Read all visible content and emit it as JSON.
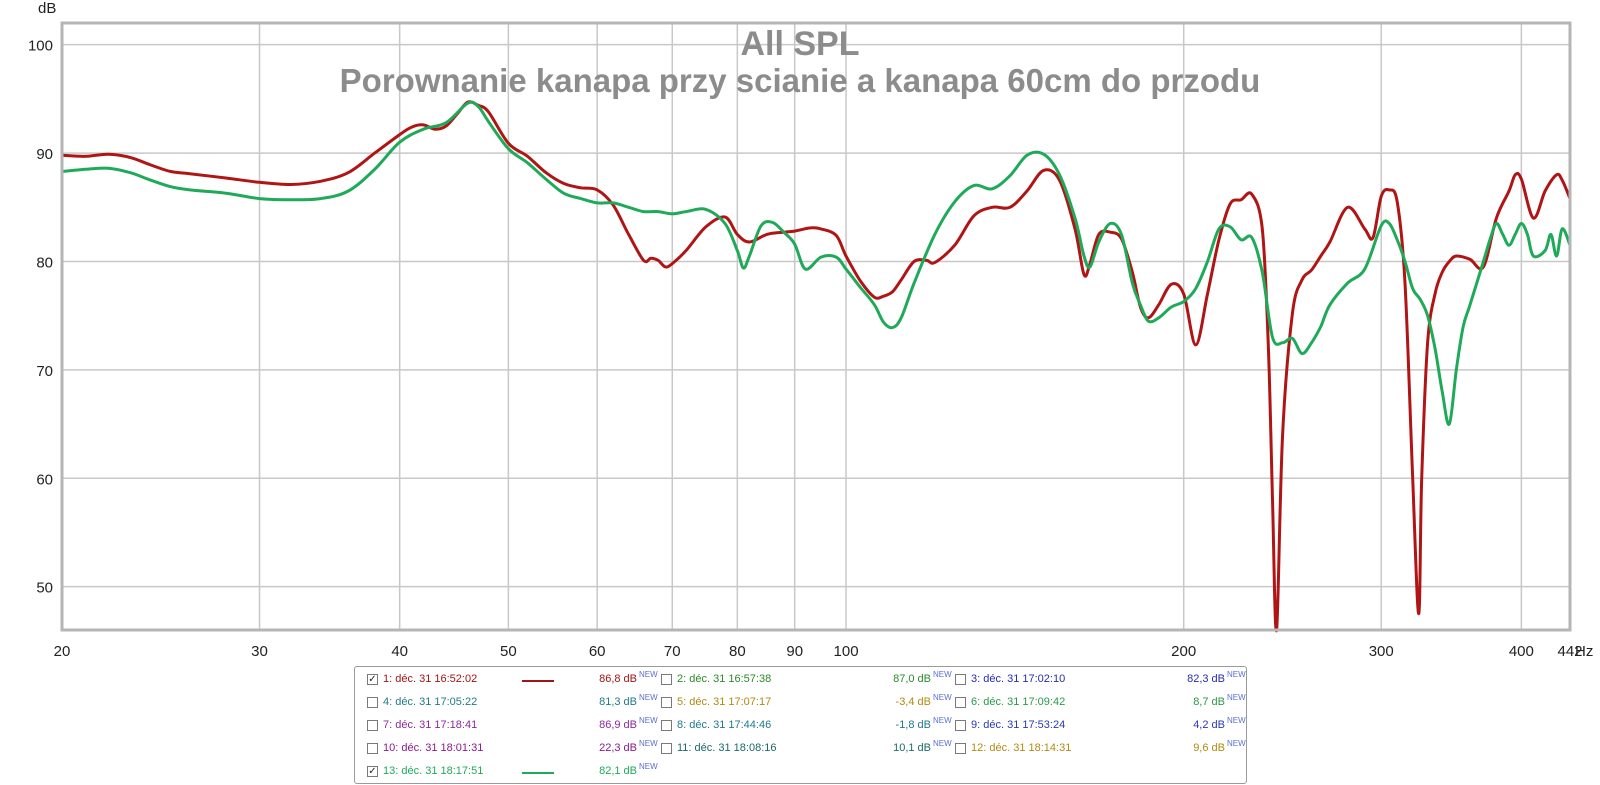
{
  "chart_data": {
    "type": "line",
    "title": "All SPL",
    "subtitle": "Porownanie kanapa przy scianie a kanapa 60cm do przodu",
    "ylabel": "dB",
    "xunit": "Hz",
    "xscale": "log",
    "xlim": [
      20,
      442
    ],
    "ylim": [
      46,
      102
    ],
    "grid": true,
    "xticks": [
      20,
      30,
      40,
      50,
      60,
      70,
      80,
      90,
      100,
      200,
      300,
      400,
      442
    ],
    "xtick_labels": [
      "20",
      "30",
      "40",
      "50",
      "60",
      "70",
      "80",
      "90",
      "100",
      "200",
      "300",
      "400",
      "442"
    ],
    "yticks": [
      50,
      60,
      70,
      80,
      90,
      100
    ],
    "ytick_labels": [
      "50",
      "60",
      "70",
      "80",
      "90",
      "100"
    ],
    "series": [
      {
        "name": "1: déc. 31 16:52:02",
        "color": "#b01515",
        "x": [
          20,
          21,
          22,
          23,
          24,
          25,
          26,
          28,
          30,
          32,
          34,
          36,
          38,
          40,
          41,
          42,
          43,
          44,
          45,
          46,
          47,
          48,
          50,
          52,
          54,
          56,
          58,
          60,
          62,
          64,
          66,
          67,
          68,
          69,
          70,
          72,
          75,
          78,
          80,
          82,
          85,
          88,
          90,
          93,
          95,
          98,
          100,
          103,
          106,
          108,
          110,
          112,
          115,
          118,
          120,
          125,
          130,
          135,
          140,
          145,
          150,
          155,
          160,
          163,
          165,
          168,
          172,
          176,
          180,
          183,
          186,
          190,
          195,
          200,
          205,
          210,
          215,
          220,
          225,
          230,
          235,
          238,
          240,
          242,
          245,
          250,
          255,
          260,
          265,
          270,
          280,
          290,
          295,
          300,
          305,
          310,
          315,
          320,
          324,
          326,
          330,
          335,
          340,
          345,
          350,
          360,
          370,
          380,
          390,
          395,
          400,
          410,
          420,
          430,
          435,
          442
        ],
        "values": [
          89.8,
          89.7,
          89.9,
          89.6,
          88.9,
          88.3,
          88.1,
          87.7,
          87.3,
          87.1,
          87.4,
          88.2,
          90.0,
          91.7,
          92.4,
          92.6,
          92.2,
          92.5,
          93.6,
          94.7,
          94.4,
          93.8,
          90.9,
          89.7,
          88.2,
          87.2,
          86.8,
          86.6,
          85.2,
          82.5,
          80.1,
          80.3,
          80.1,
          79.5,
          79.8,
          81.0,
          83.2,
          84.1,
          82.5,
          81.8,
          82.5,
          82.7,
          82.8,
          83.1,
          83.0,
          82.4,
          80.5,
          78.2,
          76.7,
          76.8,
          77.2,
          78.3,
          80.0,
          80.1,
          79.9,
          81.5,
          84.2,
          85.0,
          85.0,
          86.5,
          88.4,
          87.5,
          83.0,
          78.8,
          79.8,
          82.5,
          82.7,
          82.1,
          79.0,
          75.8,
          74.8,
          76.0,
          77.9,
          77.0,
          72.3,
          77.0,
          82.0,
          85.3,
          85.7,
          86.2,
          83.0,
          72.0,
          58.0,
          46.0,
          64.0,
          75.2,
          78.3,
          79.2,
          80.5,
          81.8,
          85.0,
          83.0,
          82.2,
          86.0,
          86.6,
          85.5,
          78.0,
          60.0,
          47.5,
          60.0,
          72.5,
          77.0,
          79.0,
          80.0,
          80.5,
          80.2,
          79.5,
          84.0,
          86.5,
          88.0,
          87.6,
          84.0,
          86.5,
          88.0,
          87.5,
          85.8
        ]
      },
      {
        "name": "13: déc. 31 18:17:51",
        "color": "#1faa5a",
        "x": [
          20,
          21,
          22,
          23,
          24,
          25,
          26,
          28,
          30,
          32,
          34,
          36,
          38,
          40,
          42,
          44,
          46,
          47,
          48,
          50,
          52,
          54,
          56,
          58,
          60,
          62,
          64,
          66,
          68,
          70,
          72,
          75,
          78,
          80,
          81,
          82,
          84,
          86,
          88,
          90,
          92,
          95,
          98,
          100,
          103,
          106,
          108,
          110,
          112,
          115,
          120,
          125,
          130,
          135,
          140,
          145,
          150,
          155,
          160,
          163,
          165,
          168,
          172,
          176,
          180,
          183,
          186,
          190,
          195,
          200,
          205,
          210,
          215,
          220,
          225,
          230,
          235,
          240,
          245,
          250,
          255,
          260,
          265,
          270,
          280,
          290,
          300,
          305,
          310,
          315,
          320,
          325,
          330,
          335,
          340,
          345,
          350,
          355,
          360,
          370,
          375,
          380,
          385,
          390,
          395,
          400,
          405,
          410,
          420,
          425,
          430,
          435,
          442
        ],
        "values": [
          88.3,
          88.5,
          88.6,
          88.2,
          87.5,
          86.9,
          86.6,
          86.3,
          85.8,
          85.7,
          85.8,
          86.5,
          88.5,
          91.0,
          92.2,
          92.8,
          94.6,
          94.3,
          92.9,
          90.4,
          89.1,
          87.6,
          86.3,
          85.8,
          85.4,
          85.4,
          85.0,
          84.6,
          84.6,
          84.4,
          84.6,
          84.8,
          83.5,
          81.0,
          79.4,
          80.5,
          83.3,
          83.6,
          82.7,
          81.6,
          79.3,
          80.4,
          80.4,
          79.3,
          77.6,
          76.0,
          74.4,
          73.9,
          74.8,
          78.0,
          82.5,
          85.5,
          87.0,
          86.7,
          87.9,
          89.8,
          89.9,
          88.0,
          84.0,
          80.5,
          79.5,
          81.8,
          83.5,
          82.5,
          78.0,
          76.0,
          74.5,
          74.8,
          75.8,
          76.3,
          77.5,
          80.0,
          83.0,
          83.2,
          82.0,
          82.2,
          79.0,
          73.0,
          72.5,
          72.9,
          71.5,
          72.5,
          74.0,
          76.0,
          78.0,
          79.3,
          83.3,
          83.5,
          82.0,
          80.0,
          77.5,
          76.5,
          75.0,
          72.0,
          68.0,
          65.0,
          70.0,
          74.0,
          76.0,
          80.0,
          82.0,
          83.5,
          82.5,
          81.5,
          82.5,
          83.5,
          82.5,
          80.5,
          81.0,
          82.5,
          80.5,
          83.0,
          81.5
        ]
      }
    ]
  },
  "legend": {
    "items": [
      {
        "label": "1: déc. 31 16:52:02",
        "level": "86,8 dB",
        "new": "NEW",
        "checked": true,
        "check_mark": "✓",
        "color": "#a01515",
        "swatch": true
      },
      {
        "label": "2: déc. 31 16:57:38",
        "level": "87,0 dB",
        "new": "NEW",
        "checked": false,
        "check_mark": "",
        "color": "#2a8a2a",
        "swatch": false
      },
      {
        "label": "3: déc. 31 17:02:10",
        "level": "82,3 dB",
        "new": "NEW",
        "checked": false,
        "check_mark": "",
        "color": "#2a2ab0",
        "swatch": false
      },
      {
        "label": "4: déc. 31 17:05:22",
        "level": "81,3 dB",
        "new": "NEW",
        "checked": false,
        "check_mark": "",
        "color": "#1f7a8a",
        "swatch": false
      },
      {
        "label": "5: déc. 31 17:07:17",
        "level": "-3,4 dB",
        "new": "NEW",
        "checked": false,
        "check_mark": "",
        "color": "#b08a10",
        "swatch": false
      },
      {
        "label": "6: déc. 31 17:09:42",
        "level": "8,7 dB",
        "new": "NEW",
        "checked": false,
        "check_mark": "",
        "color": "#2a9a4a",
        "swatch": false
      },
      {
        "label": "7: déc. 31 17:18:41",
        "level": "86,9 dB",
        "new": "NEW",
        "checked": false,
        "check_mark": "",
        "color": "#8a2a9a",
        "swatch": false
      },
      {
        "label": "8: déc. 31 17:44:46",
        "level": "-1,8 dB",
        "new": "NEW",
        "checked": false,
        "check_mark": "",
        "color": "#1f7a8a",
        "swatch": false
      },
      {
        "label": "9: déc. 31 17:53:24",
        "level": "4,2 dB",
        "new": "NEW",
        "checked": false,
        "check_mark": "",
        "color": "#2a3ab0",
        "swatch": false
      },
      {
        "label": "10: déc. 31 18:01:31",
        "level": "22,3 dB",
        "new": "NEW",
        "checked": false,
        "check_mark": "",
        "color": "#8a1a8a",
        "swatch": false
      },
      {
        "label": "11: déc. 31 18:08:16",
        "level": "10,1 dB",
        "new": "NEW",
        "checked": false,
        "check_mark": "",
        "color": "#1a6a6a",
        "swatch": false
      },
      {
        "label": "12: déc. 31 18:14:31",
        "level": "9,6 dB",
        "new": "NEW",
        "checked": false,
        "check_mark": "",
        "color": "#b08a10",
        "swatch": false
      },
      {
        "label": "13: déc. 31 18:17:51",
        "level": "82,1 dB",
        "new": "NEW",
        "checked": true,
        "check_mark": "✓",
        "color": "#1faa5a",
        "swatch": true
      }
    ]
  }
}
